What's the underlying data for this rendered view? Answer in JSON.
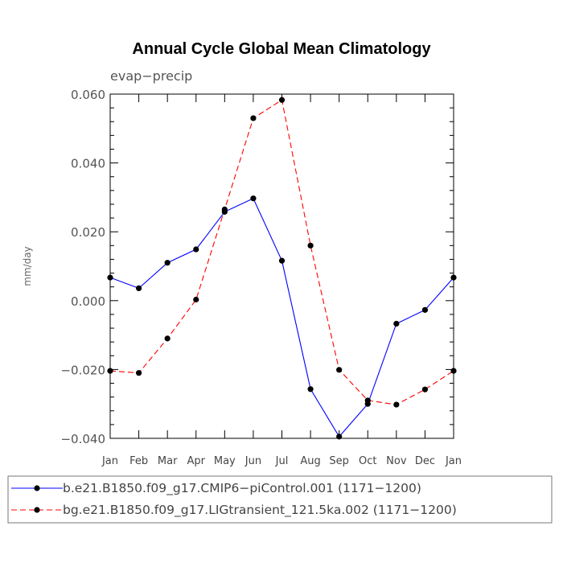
{
  "chart_data": {
    "type": "line",
    "title": "Annual Cycle Global Mean Climatology",
    "subtitle": "evap−precip",
    "xlabel": "",
    "ylabel": "mm/day",
    "categories": [
      "Jan",
      "Feb",
      "Mar",
      "Apr",
      "May",
      "Jun",
      "Jul",
      "Aug",
      "Sep",
      "Oct",
      "Nov",
      "Dec",
      "Jan"
    ],
    "ylim": [
      -0.04,
      0.06
    ],
    "yticks": [
      0.06,
      0.04,
      0.02,
      0.0,
      -0.02,
      -0.04
    ],
    "ytick_labels": [
      "0.060",
      "0.040",
      "0.020",
      "0.000",
      "−0.020",
      "−0.040"
    ],
    "series": [
      {
        "name": "b.e21.B1850.f09_g17.CMIP6−piControl.001 (1171−1200)",
        "color": "#0000ff",
        "dash": "solid",
        "values": [
          0.0067,
          0.0036,
          0.011,
          0.0149,
          0.0258,
          0.0297,
          0.0116,
          -0.0257,
          -0.0395,
          -0.03,
          -0.0067,
          -0.0027,
          0.0067
        ]
      },
      {
        "name": "bg.e21.B1850.f09_g17.LIGtransient_121.5ka.002 (1171−1200)",
        "color": "#ff0000",
        "dash": "dashed",
        "values": [
          -0.0204,
          -0.021,
          -0.011,
          0.0003,
          0.0265,
          0.053,
          0.0583,
          0.016,
          -0.0201,
          -0.029,
          -0.0302,
          -0.0258,
          -0.0204
        ]
      }
    ],
    "legend_position": "bottom"
  }
}
